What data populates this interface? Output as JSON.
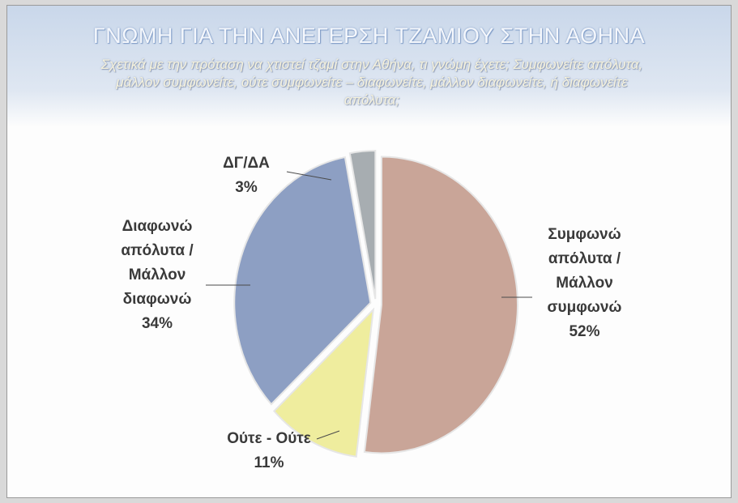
{
  "chart_data": {
    "type": "pie",
    "title": "ΓΝΩΜΗ ΓΙΑ ΤΗΝ ΑΝΕΓΕΡΣΗ ΤΖΑΜΙΟΥ ΣΤΗΝ ΑΘΗΝΑ",
    "subtitle": "Σχετικά με την πρόταση να χτιστεί τζαμί στην Αθήνα, τι γνώμη έχετε; Συμφωνείτε απόλυτα, μάλλον συμφωνείτε, ούτε συμφωνείτε – διαφωνείτε, μάλλον διαφωνείτε, ή διαφωνείτε απόλυτα;",
    "categories": [
      "Συμφωνώ απόλυτα / Μάλλον συμφωνώ",
      "Ούτε - Ούτε",
      "Διαφωνώ απόλυτα / Μάλλον διαφωνώ",
      "ΔΓ/ΔΑ"
    ],
    "values": [
      52,
      11,
      34,
      3
    ],
    "value_labels": [
      "52%",
      "11%",
      "34%",
      "3%"
    ],
    "colors": [
      "#c9a598",
      "#efed9e",
      "#8d9fc3",
      "#a7adb1"
    ]
  }
}
